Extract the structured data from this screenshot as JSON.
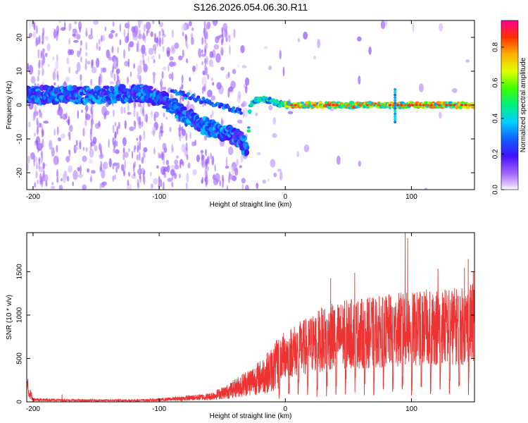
{
  "title": "S126.2026.054.06.30.R11",
  "chart_data": [
    {
      "type": "heatmap",
      "xlabel": "Height of straight line (km)",
      "ylabel": "Frequency (Hz)",
      "xlim": [
        -205,
        150
      ],
      "ylim": [
        -25,
        25
      ],
      "xticks": [
        -200,
        -100,
        0,
        100
      ],
      "yticks": [
        -20,
        -10,
        0,
        10,
        20
      ],
      "colorbar": {
        "label": "Normalized spectral amplitude",
        "range": [
          0,
          0.95
        ],
        "ticks": [
          "0.0",
          "0.2",
          "0.4",
          "0.6",
          "0.8"
        ],
        "colormap": "rainbow"
      },
      "ridge": [
        {
          "x": -200,
          "f": 3
        },
        {
          "x": -150,
          "f": 3
        },
        {
          "x": -110,
          "f": 3.5
        },
        {
          "x": -95,
          "f": 1
        },
        {
          "x": -80,
          "f": -3
        },
        {
          "x": -65,
          "f": -6
        },
        {
          "x": -50,
          "f": -8
        },
        {
          "x": -35,
          "f": -10
        },
        {
          "x": -30,
          "f": -14
        },
        {
          "x": -28,
          "f": 0
        },
        {
          "x": -20,
          "f": 2
        },
        {
          "x": 0,
          "f": 0
        },
        {
          "x": 150,
          "f": 0
        }
      ]
    },
    {
      "type": "line",
      "xlabel": "Height of straight line (km)",
      "ylabel": "SNR (10 * v/v)",
      "xlim": [
        -205,
        150
      ],
      "ylim": [
        0,
        1950
      ],
      "xticks": [
        -200,
        -100,
        0,
        100
      ],
      "yticks": [
        0,
        500,
        1000,
        1500
      ],
      "color": "#ee3333",
      "envelope": [
        {
          "x": -205,
          "y": 250
        },
        {
          "x": -200,
          "y": 40
        },
        {
          "x": -180,
          "y": 30
        },
        {
          "x": -160,
          "y": 25
        },
        {
          "x": -120,
          "y": 25
        },
        {
          "x": -100,
          "y": 35
        },
        {
          "x": -80,
          "y": 60
        },
        {
          "x": -60,
          "y": 90
        },
        {
          "x": -45,
          "y": 180
        },
        {
          "x": -30,
          "y": 330
        },
        {
          "x": -20,
          "y": 420
        },
        {
          "x": -10,
          "y": 560
        },
        {
          "x": 0,
          "y": 760
        },
        {
          "x": 15,
          "y": 870
        },
        {
          "x": 30,
          "y": 1000
        },
        {
          "x": 50,
          "y": 1080
        },
        {
          "x": 70,
          "y": 1100
        },
        {
          "x": 90,
          "y": 1150
        },
        {
          "x": 100,
          "y": 1150
        },
        {
          "x": 120,
          "y": 1200
        },
        {
          "x": 140,
          "y": 1200
        },
        {
          "x": 150,
          "y": 1250
        }
      ],
      "peaks": [
        {
          "x": -204,
          "y": 260
        },
        {
          "x": -177,
          "y": 80
        },
        {
          "x": 36,
          "y": 1420
        },
        {
          "x": 55,
          "y": 1480
        },
        {
          "x": 95,
          "y": 1940
        },
        {
          "x": 97,
          "y": 1880
        },
        {
          "x": 121,
          "y": 1530
        },
        {
          "x": 142,
          "y": 1540
        },
        {
          "x": 145,
          "y": 1640
        },
        {
          "x": 149,
          "y": 1500
        }
      ]
    }
  ]
}
